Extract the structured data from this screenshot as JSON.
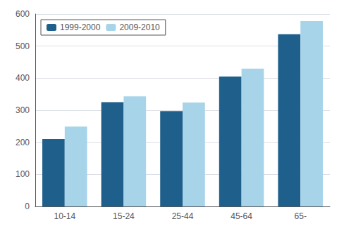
{
  "chart_data": {
    "type": "bar",
    "categories": [
      "10-14",
      "15-24",
      "25-44",
      "45-64",
      "65-"
    ],
    "series": [
      {
        "name": "1999-2000",
        "color": "#1f5f8b",
        "values": [
          210,
          325,
          297,
          405,
          537
        ]
      },
      {
        "name": "2009-2010",
        "color": "#a8d4ea",
        "values": [
          249,
          343,
          324,
          430,
          578
        ]
      }
    ],
    "ylim": [
      0,
      600
    ],
    "yticks": [
      0,
      100,
      200,
      300,
      400,
      500,
      600
    ],
    "grid": true,
    "legend": "upper left"
  }
}
